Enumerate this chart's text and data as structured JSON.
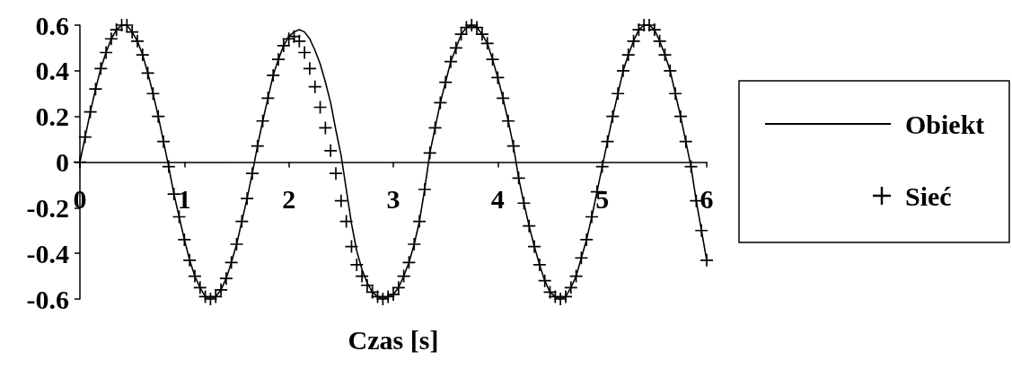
{
  "chart_data": {
    "type": "line",
    "xlabel": "Czas [s]",
    "x": [
      0,
      0.05,
      0.1,
      0.15,
      0.2,
      0.25,
      0.3,
      0.35,
      0.4,
      0.45,
      0.5,
      0.55,
      0.6,
      0.65,
      0.7,
      0.75,
      0.8,
      0.85,
      0.9,
      0.95,
      1,
      1.05,
      1.1,
      1.15,
      1.2,
      1.25,
      1.3,
      1.35,
      1.4,
      1.45,
      1.5,
      1.55,
      1.6,
      1.65,
      1.7,
      1.75,
      1.8,
      1.85,
      1.9,
      1.95,
      2,
      2.05,
      2.1,
      2.15,
      2.2,
      2.25,
      2.3,
      2.35,
      2.4,
      2.45,
      2.5,
      2.55,
      2.6,
      2.65,
      2.7,
      2.75,
      2.8,
      2.85,
      2.9,
      2.95,
      3,
      3.05,
      3.1,
      3.15,
      3.2,
      3.25,
      3.3,
      3.35,
      3.4,
      3.45,
      3.5,
      3.55,
      3.6,
      3.65,
      3.7,
      3.75,
      3.8,
      3.85,
      3.9,
      3.95,
      4,
      4.05,
      4.1,
      4.15,
      4.2,
      4.25,
      4.3,
      4.35,
      4.4,
      4.45,
      4.5,
      4.55,
      4.6,
      4.65,
      4.7,
      4.75,
      4.8,
      4.85,
      4.9,
      4.95,
      5,
      5.05,
      5.1,
      5.15,
      5.2,
      5.25,
      5.3,
      5.35,
      5.4,
      5.45,
      5.5,
      5.55,
      5.6,
      5.65,
      5.7,
      5.75,
      5.8,
      5.85,
      5.9,
      5.95,
      6
    ],
    "series": [
      {
        "name": "Obiekt",
        "type": "line",
        "color": "#000000",
        "marker": "none",
        "line_style": "solid",
        "values": [
          0,
          0.11,
          0.22,
          0.32,
          0.41,
          0.48,
          0.54,
          0.58,
          0.6,
          0.6,
          0.57,
          0.53,
          0.47,
          0.39,
          0.3,
          0.2,
          0.09,
          -0.02,
          -0.14,
          -0.24,
          -0.34,
          -0.43,
          -0.5,
          -0.55,
          -0.59,
          -0.6,
          -0.59,
          -0.56,
          -0.51,
          -0.44,
          -0.36,
          -0.26,
          -0.16,
          -0.05,
          0.07,
          0.18,
          0.28,
          0.38,
          0.45,
          0.51,
          0.55,
          0.57,
          0.58,
          0.57,
          0.54,
          0.49,
          0.43,
          0.35,
          0.26,
          0.14,
          0.03,
          -0.12,
          -0.27,
          -0.39,
          -0.47,
          -0.53,
          -0.57,
          -0.59,
          -0.6,
          -0.59,
          -0.58,
          -0.55,
          -0.5,
          -0.44,
          -0.36,
          -0.26,
          -0.12,
          0.04,
          0.15,
          0.26,
          0.35,
          0.44,
          0.5,
          0.56,
          0.59,
          0.6,
          0.59,
          0.56,
          0.52,
          0.45,
          0.37,
          0.28,
          0.18,
          0.07,
          -0.07,
          -0.18,
          -0.28,
          -0.37,
          -0.45,
          -0.52,
          -0.57,
          -0.59,
          -0.6,
          -0.59,
          -0.55,
          -0.5,
          -0.42,
          -0.34,
          -0.24,
          -0.13,
          -0.02,
          0.09,
          0.2,
          0.3,
          0.4,
          0.47,
          0.53,
          0.58,
          0.6,
          0.6,
          0.58,
          0.53,
          0.47,
          0.4,
          0.3,
          0.2,
          0.09,
          -0.02,
          -0.17,
          -0.3,
          -0.43
        ]
      },
      {
        "name": "Sieć",
        "type": "scatter",
        "color": "#000000",
        "marker": "cross",
        "values": [
          0,
          0.11,
          0.22,
          0.32,
          0.41,
          0.48,
          0.54,
          0.58,
          0.6,
          0.6,
          0.57,
          0.53,
          0.47,
          0.39,
          0.3,
          0.2,
          0.09,
          -0.02,
          -0.14,
          -0.24,
          -0.34,
          -0.43,
          -0.5,
          -0.55,
          -0.59,
          -0.6,
          -0.59,
          -0.56,
          -0.51,
          -0.44,
          -0.36,
          -0.26,
          -0.16,
          -0.05,
          0.07,
          0.18,
          0.28,
          0.38,
          0.45,
          0.51,
          0.54,
          0.55,
          0.53,
          0.48,
          0.41,
          0.33,
          0.24,
          0.15,
          0.05,
          -0.05,
          -0.17,
          -0.26,
          -0.37,
          -0.45,
          -0.5,
          -0.54,
          -0.57,
          -0.59,
          -0.6,
          -0.59,
          -0.58,
          -0.55,
          -0.5,
          -0.44,
          -0.36,
          -0.26,
          -0.12,
          0.04,
          0.15,
          0.26,
          0.35,
          0.44,
          0.5,
          0.56,
          0.59,
          0.6,
          0.59,
          0.56,
          0.52,
          0.45,
          0.37,
          0.28,
          0.18,
          0.07,
          -0.07,
          -0.18,
          -0.28,
          -0.37,
          -0.45,
          -0.52,
          -0.57,
          -0.59,
          -0.6,
          -0.59,
          -0.55,
          -0.5,
          -0.42,
          -0.34,
          -0.24,
          -0.13,
          -0.02,
          0.09,
          0.2,
          0.3,
          0.4,
          0.47,
          0.53,
          0.58,
          0.6,
          0.6,
          0.58,
          0.53,
          0.47,
          0.4,
          0.3,
          0.2,
          0.09,
          -0.02,
          -0.17,
          -0.3,
          -0.43
        ]
      }
    ],
    "xlim": [
      0,
      6
    ],
    "xticks": [
      0,
      1,
      2,
      3,
      4,
      5,
      6
    ],
    "ylim": [
      -0.6,
      0.6
    ],
    "yticks": [
      -0.6,
      -0.4,
      -0.2,
      0,
      0.2,
      0.4,
      0.6
    ],
    "grid": false,
    "legend": "right"
  }
}
